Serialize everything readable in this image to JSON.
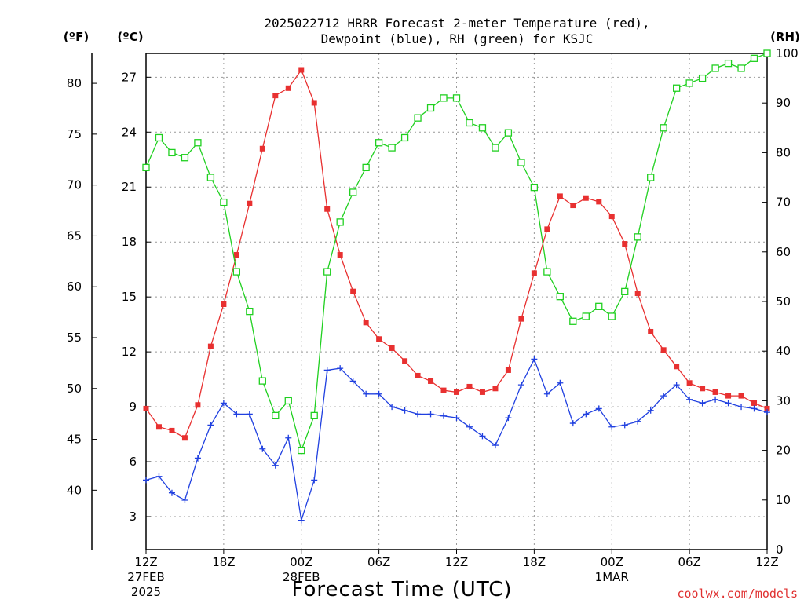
{
  "chart_data": {
    "type": "line",
    "title": [
      "2025022712 HRRR Forecast 2-meter Temperature (red),",
      "Dewpoint (blue), RH (green) for KSJC"
    ],
    "units": {
      "f": "(ºF)",
      "c": "(ºC)",
      "rh": "(RH)"
    },
    "xlabel": "Forecast Time (UTC)",
    "credit": "coolwx.com/models",
    "x_range_hours": [
      0,
      48
    ],
    "x_ticks": [
      {
        "h": 0,
        "label": "12Z",
        "line2": "27FEB",
        "line3": "2025"
      },
      {
        "h": 6,
        "label": "18Z"
      },
      {
        "h": 12,
        "label": "00Z",
        "line2": "28FEB"
      },
      {
        "h": 18,
        "label": "06Z"
      },
      {
        "h": 24,
        "label": "12Z"
      },
      {
        "h": 30,
        "label": "18Z"
      },
      {
        "h": 36,
        "label": "00Z",
        "line2": "1MAR"
      },
      {
        "h": 42,
        "label": "06Z"
      },
      {
        "h": 48,
        "label": "12Z"
      }
    ],
    "y_left_c": {
      "range": [
        1.2,
        28.3
      ],
      "ticks": [
        3,
        6,
        9,
        12,
        15,
        18,
        21,
        24,
        27
      ]
    },
    "y_left_f": {
      "ticks": [
        40,
        45,
        50,
        55,
        60,
        65,
        70,
        75,
        80
      ]
    },
    "y_right_rh": {
      "range": [
        0,
        100
      ],
      "ticks": [
        0,
        10,
        20,
        30,
        40,
        50,
        60,
        70,
        80,
        90,
        100
      ]
    },
    "grid": true,
    "series": [
      {
        "name": "Temperature",
        "axis": "c",
        "color": "#e83030",
        "marker": "filled-square",
        "values": [
          8.9,
          7.9,
          7.7,
          7.3,
          9.1,
          12.3,
          14.6,
          17.3,
          20.1,
          23.1,
          26.0,
          26.4,
          27.4,
          25.6,
          19.8,
          17.3,
          15.3,
          13.6,
          12.7,
          12.2,
          11.5,
          10.7,
          10.4,
          9.9,
          9.8,
          10.1,
          9.8,
          10.0,
          11.0,
          13.8,
          16.3,
          18.7,
          20.5,
          20.0,
          20.4,
          20.2,
          19.4,
          17.9,
          15.2,
          13.1,
          12.1,
          11.2,
          10.3,
          10.0,
          9.8,
          9.6,
          9.6,
          9.2,
          8.9
        ]
      },
      {
        "name": "Dewpoint",
        "axis": "c",
        "color": "#2040e0",
        "marker": "plus",
        "values": [
          5.0,
          5.2,
          4.3,
          3.9,
          6.2,
          8.0,
          9.2,
          8.6,
          8.6,
          6.7,
          5.8,
          7.3,
          2.8,
          5.0,
          11.0,
          11.1,
          10.4,
          9.7,
          9.7,
          9.0,
          8.8,
          8.6,
          8.6,
          8.5,
          8.4,
          7.9,
          7.4,
          6.9,
          8.4,
          10.2,
          11.6,
          9.7,
          10.3,
          8.1,
          8.6,
          8.9,
          7.9,
          8.0,
          8.2,
          8.8,
          9.6,
          10.2,
          9.4,
          9.2,
          9.4,
          9.2,
          9.0,
          8.9,
          8.7
        ]
      },
      {
        "name": "RH",
        "axis": "rh",
        "color": "#20d020",
        "marker": "open-square",
        "values": [
          77,
          83,
          80,
          79,
          82,
          75,
          70,
          56,
          48,
          34,
          27,
          30,
          20,
          27,
          56,
          66,
          72,
          77,
          82,
          81,
          83,
          87,
          89,
          91,
          91,
          86,
          85,
          81,
          84,
          78,
          73,
          56,
          51,
          46,
          47,
          49,
          47,
          52,
          63,
          75,
          85,
          93,
          94,
          95,
          97,
          98,
          97,
          99,
          100
        ]
      }
    ]
  }
}
